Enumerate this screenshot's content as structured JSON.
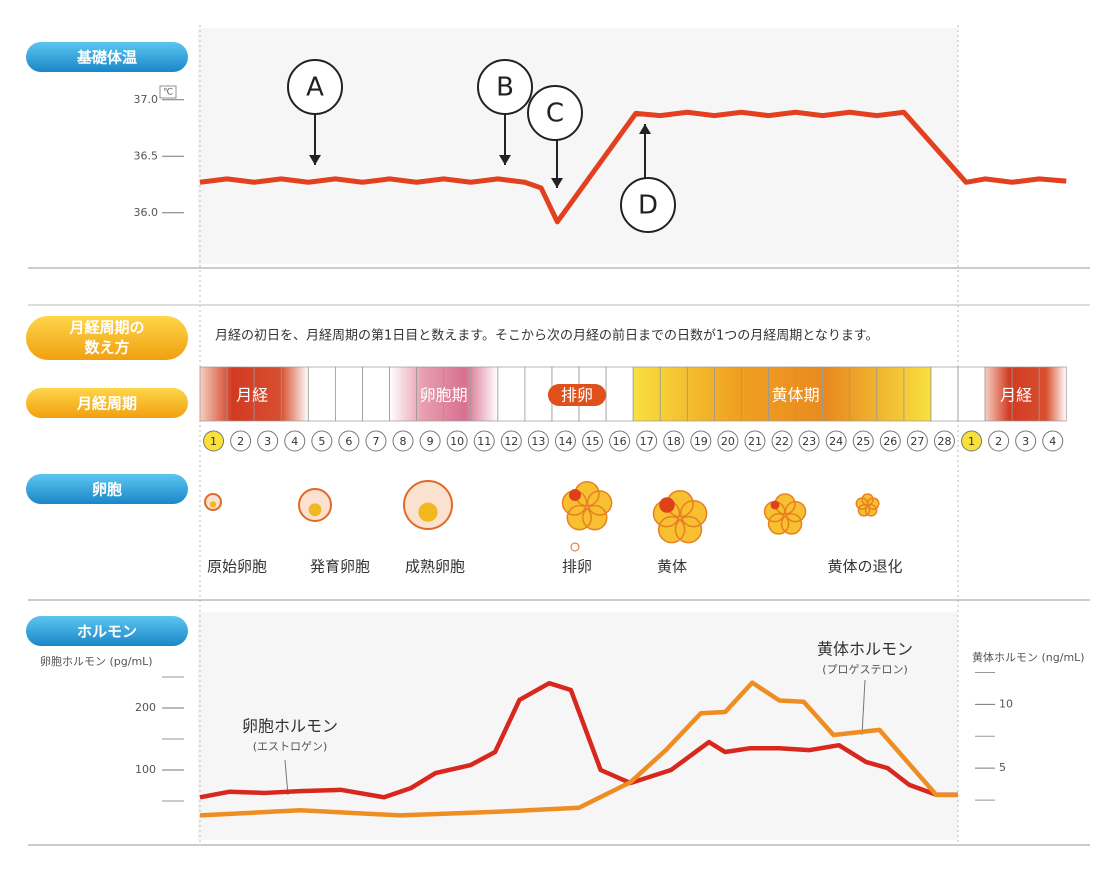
{
  "bbt": {
    "label": "基礎体温",
    "unit": "℃",
    "xlim": [
      0,
      32
    ],
    "ylim": [
      35.6,
      37.6
    ],
    "yticks": [
      {
        "value": 37,
        "label": "37.0"
      },
      36.5,
      {
        "value": 36,
        "label": "36.0"
      }
    ],
    "x": [
      0,
      1,
      2,
      3,
      4,
      5,
      6,
      7,
      8,
      9,
      10,
      11,
      12,
      12.6,
      13.2,
      16.1,
      17,
      18,
      19,
      20,
      21,
      22,
      23,
      24,
      25,
      26,
      28.3,
      29,
      30,
      31,
      32
    ],
    "values": [
      36.27,
      36.3,
      36.27,
      36.3,
      36.27,
      36.3,
      36.27,
      36.3,
      36.27,
      36.3,
      36.27,
      36.3,
      36.27,
      36.22,
      35.92,
      36.88,
      36.86,
      36.89,
      36.86,
      36.89,
      36.86,
      36.89,
      36.86,
      36.89,
      36.86,
      36.89,
      36.27,
      36.3,
      36.27,
      36.3,
      36.28
    ],
    "color": "#e2401f",
    "markers": [
      "A",
      "B",
      "C",
      "D"
    ]
  },
  "cycle": {
    "howto_label": [
      "月経周期の",
      "数え方"
    ],
    "description": "月経の初日を、月経周期の第1日目と数えます。そこから次の月経の前日までの日数が1つの月経周期となります。",
    "label": "月経周期",
    "phases": [
      "月経",
      "卵胞期",
      "排卵",
      "黄体期",
      "月経"
    ],
    "days": [
      1,
      2,
      3,
      4,
      5,
      6,
      7,
      8,
      9,
      10,
      11,
      12,
      13,
      14,
      15,
      16,
      17,
      18,
      19,
      20,
      21,
      22,
      23,
      24,
      25,
      26,
      27,
      28
    ],
    "next_days": [
      1,
      2,
      3,
      4
    ]
  },
  "follicle": {
    "label": "卵胞",
    "stages": [
      "原始卵胞",
      "発育卵胞",
      "成熟卵胞",
      "排卵",
      "黄体",
      "黄体の退化"
    ]
  },
  "hormone": {
    "label": "ホルモン",
    "xlim": [
      0,
      32
    ],
    "ylabel": "卵胞ホルモン (pg/mL)",
    "y2label": "黄体ホルモン (ng/mL)",
    "ylim": [
      0,
      350
    ],
    "yticks": [
      100,
      200
    ],
    "yminor": [
      50,
      150,
      250
    ],
    "y2lim": [
      0,
      17
    ],
    "y2ticks": [
      5,
      10
    ],
    "y2minor": [
      2.5,
      7.5,
      12.5
    ],
    "series": [
      {
        "name": "卵胞ホルモン",
        "subname": "(エストロゲン)",
        "color": "#d8281e",
        "x": [
          0,
          1.1,
          2.4,
          3.7,
          5.2,
          6.8,
          7.8,
          8.7,
          10,
          10.9,
          11.8,
          12.9,
          13.7,
          14.8,
          15.9,
          17.4,
          18.8,
          19.4,
          20.3,
          21.4,
          22.5,
          23.6,
          24.6,
          25.4,
          26.2,
          27.2,
          28
        ],
        "values": [
          56,
          65,
          63,
          66,
          68,
          56,
          71,
          95,
          108,
          129,
          213,
          240,
          229,
          100,
          79,
          100,
          145,
          129,
          135,
          135,
          132,
          140,
          113,
          103,
          76,
          60,
          60
        ]
      },
      {
        "name": "黄体ホルモン",
        "subname": "(プロゲステロン)",
        "color": "#ee8e22",
        "axis": "y2",
        "x": [
          0,
          3.7,
          7.4,
          11.1,
          14,
          15.9,
          17.2,
          18.5,
          19.4,
          20.4,
          21.4,
          22.3,
          23.4,
          25.1,
          27.2,
          28
        ],
        "values": [
          1.3,
          1.7,
          1.3,
          1.6,
          1.9,
          3.9,
          6.4,
          9.3,
          9.4,
          11.7,
          10.3,
          10.2,
          7.6,
          8.0,
          2.9,
          2.9
        ]
      }
    ]
  }
}
